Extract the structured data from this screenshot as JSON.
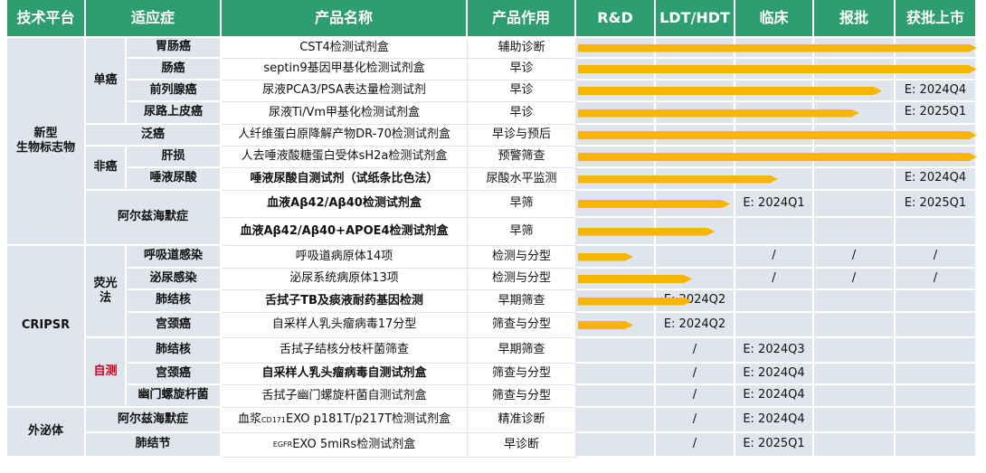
{
  "header": [
    "技术平台",
    "适应症",
    "产品名称",
    "产品作用",
    "R&D",
    "LDT/HDT",
    "临床",
    "报批",
    "获批上市"
  ],
  "platforms": [
    {
      "name_lines": [
        "新型",
        "生物标志物"
      ],
      "groups": [
        {
          "name": "单癌",
          "rows": [
            {
              "indication": "胃肠癌",
              "product": "CST4检测试剂盒",
              "role": "辅助诊断",
              "stages": [
                null,
                null,
                null,
                null,
                null
              ]
            },
            {
              "indication": "肠癌",
              "product": "septin9基因甲基化检测试剂盒",
              "role": "早诊",
              "stages": [
                null,
                null,
                null,
                null,
                null
              ]
            },
            {
              "indication": "前列腺癌",
              "product": "尿液PCA3/PSA表达量检测试剂",
              "role": "早诊",
              "stages": [
                null,
                null,
                null,
                null,
                "E: 2024Q4"
              ]
            },
            {
              "indication": "尿路上皮癌",
              "product": "尿液Ti/Vm甲基化检测试剂盒",
              "role": "早诊",
              "stages": [
                null,
                null,
                null,
                null,
                "E: 2025Q1"
              ]
            }
          ]
        },
        {
          "rows": [
            {
              "indication": "泛癌",
              "product": "人纤维蛋白原降解产物DR-70检测试剂盒",
              "role": "早诊与预后",
              "stages": [
                null,
                null,
                null,
                null,
                null
              ]
            }
          ]
        },
        {
          "name": "非癌",
          "rows": [
            {
              "indication": "肝损",
              "product": "人去唾液酸糖蛋白受体sH2a检测试剂盒",
              "role": "预警筛查",
              "stages": [
                null,
                null,
                null,
                null,
                null
              ]
            },
            {
              "indication": "唾液尿酸",
              "product": "唾液尿酸自测试剂（试纸条比色法）",
              "bold": true,
              "role": "尿酸水平监测",
              "stages": [
                null,
                null,
                null,
                null,
                "E: 2024Q4"
              ]
            }
          ]
        },
        {
          "name": "阿尔兹海默症",
          "rows": [
            {
              "product": "血液Aβ42/Aβ40检测试剂盒",
              "bold": true,
              "role": "早筛",
              "stages": [
                null,
                null,
                "E: 2024Q1",
                null,
                "E: 2025Q1"
              ]
            },
            {
              "product": "血液Aβ42/Aβ40+APOE4检测试剂盒",
              "bold": true,
              "role": "早筛",
              "stages": [
                null,
                null,
                null,
                null,
                null
              ]
            }
          ]
        }
      ]
    },
    {
      "name_lines": [
        "CRIPSR"
      ],
      "groups": [
        {
          "name": "荧光法",
          "rows": [
            {
              "indication": "呼吸道感染",
              "product": "呼吸道病原体14项",
              "role": "检测与分型",
              "stages": [
                null,
                null,
                "/",
                "/",
                "/"
              ]
            },
            {
              "indication": "泌尿感染",
              "product": "泌尿系统病原体13项",
              "role": "检测与分型",
              "stages": [
                null,
                null,
                "/",
                "/",
                "/"
              ]
            },
            {
              "indication": "肺结核",
              "product": "舌拭子TB及痰液耐药基因检测",
              "bold": true,
              "role": "早期筛查",
              "stages": [
                null,
                "E: 2024Q2",
                null,
                null,
                null
              ]
            },
            {
              "indication": "宫颈癌",
              "product": "自采样人乳头瘤病毒17分型",
              "role": "筛查与分型",
              "stages": [
                null,
                "E: 2024Q2",
                null,
                null,
                null
              ]
            }
          ]
        },
        {
          "name": "自测",
          "red": true,
          "rows": [
            {
              "indication": "肺结核",
              "product": "舌拭子结核分枝杆菌筛查",
              "role": "早期筛查",
              "stages": [
                null,
                "/",
                "E: 2024Q3",
                null,
                null
              ]
            },
            {
              "indication": "宫颈癌",
              "product": "自采样人乳头瘤病毒自测试剂盒",
              "bold": true,
              "role": "筛查与分型",
              "stages": [
                null,
                "/",
                "E: 2024Q4",
                null,
                null
              ]
            },
            {
              "indication": "幽门螺旋杆菌",
              "product": "舌拭子幽门螺旋杆菌自测试剂盒",
              "role": "筛查与分型",
              "stages": [
                null,
                "/",
                "E: 2024Q4",
                null,
                null
              ]
            }
          ]
        }
      ]
    },
    {
      "name_lines": [
        "外泌体"
      ],
      "groups": [
        {
          "rows": [
            {
              "indication": "阿尔兹海默症",
              "product": [
                {
                  "text": "血浆"
                },
                {
                  "sup": "CD171"
                },
                {
                  "text": "EXO p181T/p217T检测试剂盒"
                }
              ],
              "role": "精准诊断",
              "stages": [
                null,
                "/",
                "E: 2024Q4",
                null,
                null
              ]
            },
            {
              "indication": "肺结节",
              "product": [
                {
                  "sup": "EGFR"
                },
                {
                  "text": "EXO 5miRs检测试剂盒"
                }
              ],
              "role": "早诊断",
              "stages": [
                null,
                "/",
                "E: 2025Q1",
                null,
                null
              ]
            }
          ]
        }
      ]
    }
  ]
}
